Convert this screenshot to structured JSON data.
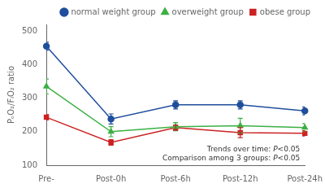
{
  "chart_data": {
    "type": "line",
    "categories": [
      "Pre-",
      "Post-0h",
      "Post-6h",
      "Post-12h",
      "Post-24h"
    ],
    "series": [
      {
        "name": "normal weight group",
        "color": "#1f4e9c",
        "marker": "circle",
        "values": [
          455,
          238,
          280,
          280,
          262
        ],
        "errors": [
          12,
          15,
          12,
          12,
          12
        ]
      },
      {
        "name": "overweight group",
        "color": "#3cb043",
        "marker": "triangle",
        "values": [
          335,
          200,
          215,
          218,
          212
        ],
        "errors": [
          22,
          15,
          12,
          22,
          12
        ]
      },
      {
        "name": "obese group",
        "color": "#cc2222",
        "marker": "square",
        "values": [
          243,
          168,
          212,
          197,
          195
        ],
        "errors": [
          8,
          8,
          8,
          15,
          8
        ]
      }
    ],
    "ylabel": "PₒO₂/FᵢO₂ ratio",
    "ylim": [
      100,
      520
    ],
    "yticks": [
      100,
      200,
      300,
      400,
      500
    ],
    "grid": false,
    "legend": "upper right",
    "annotations": [
      [
        "Trends over time: ",
        "P",
        "<0.05"
      ],
      [
        "Comparison among 3 groups: ",
        "P",
        "<0.05"
      ]
    ]
  }
}
